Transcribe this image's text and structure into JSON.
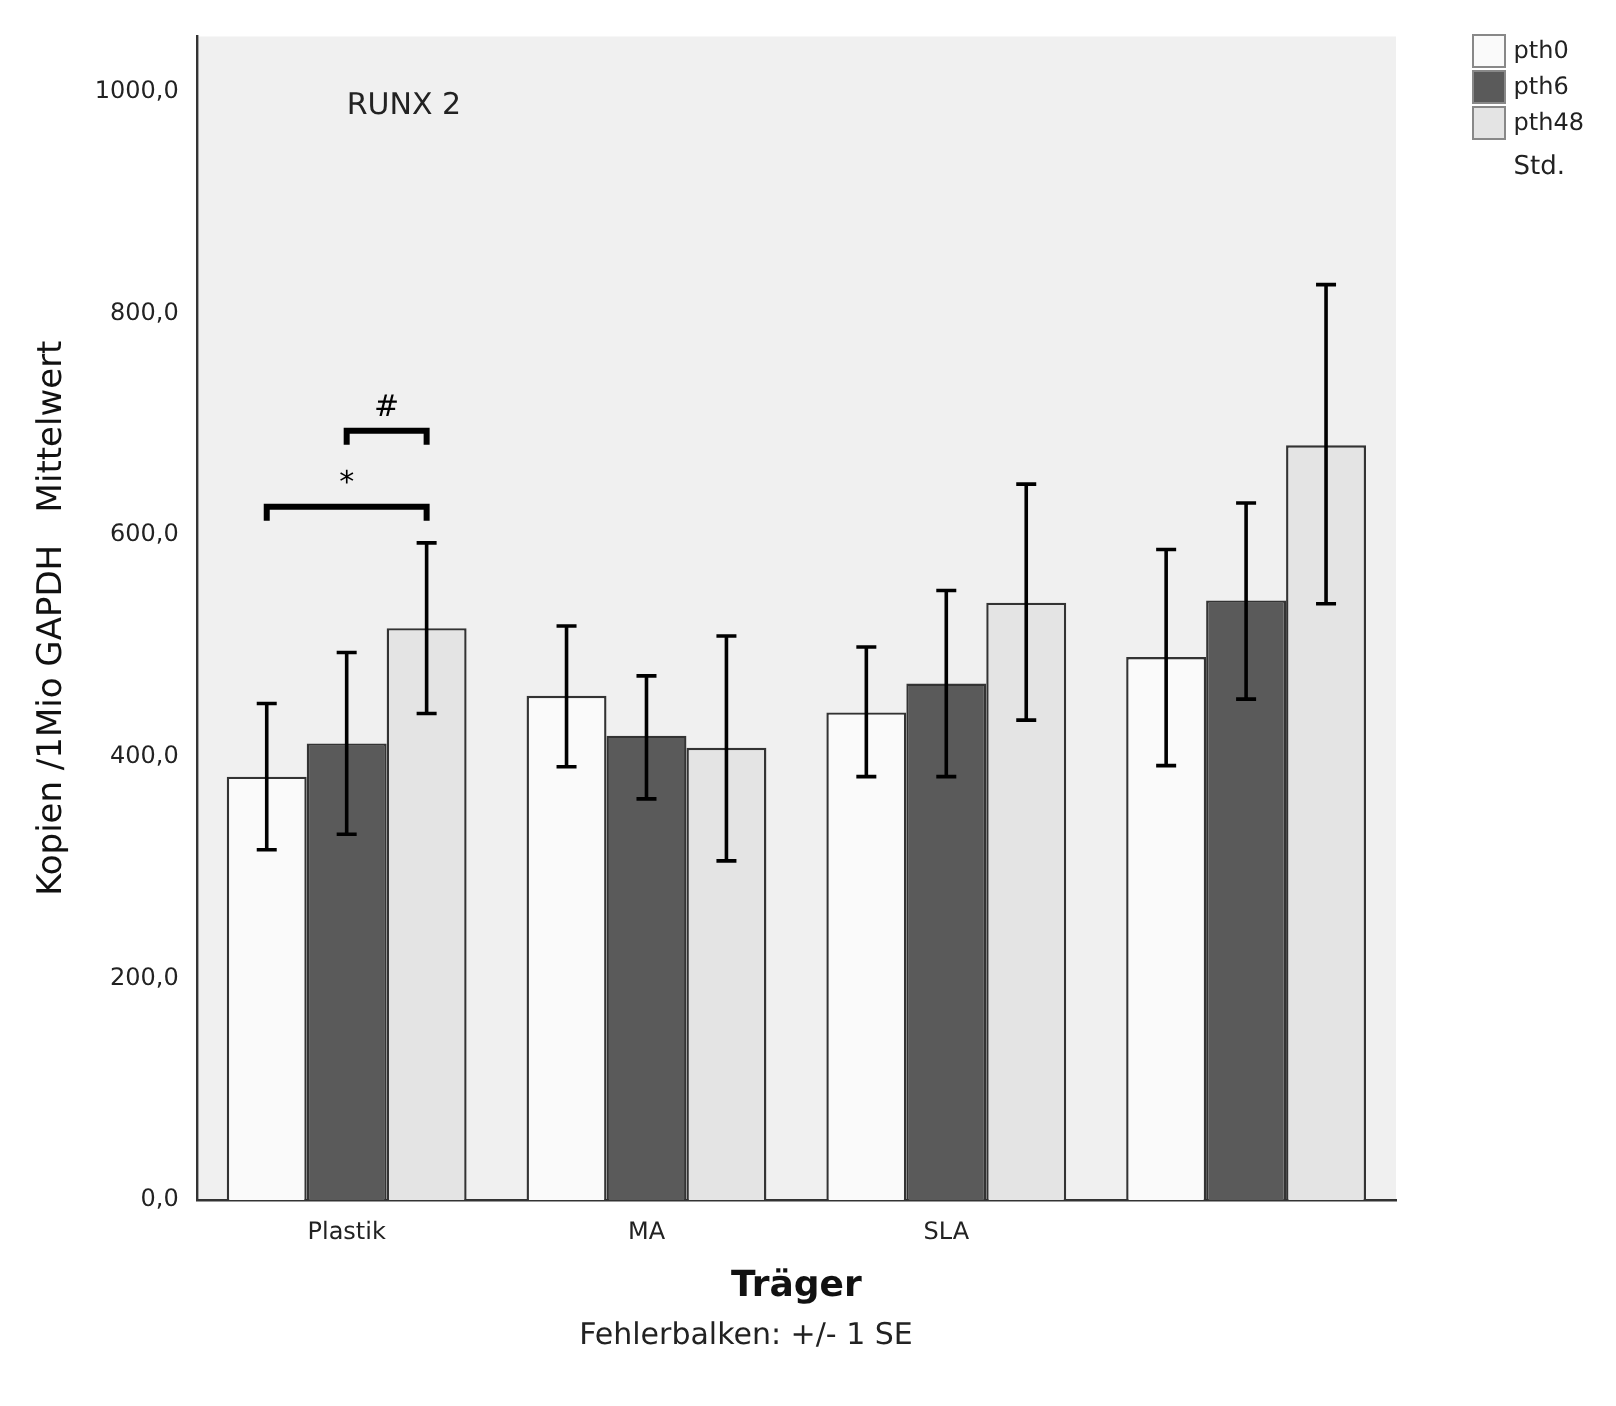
{
  "chart_data": {
    "type": "bar",
    "title": "RUNX 2",
    "xlabel": "Träger",
    "ylabel": "Kopien /1Mio GAPDH   Mittelwert",
    "legend_title": "Std.",
    "categories": [
      "Plastik",
      "MA",
      "SLA",
      null
    ],
    "series": [
      {
        "name": "pth0",
        "color": "#fafafa",
        "values": [
          382,
          455,
          440,
          490
        ],
        "errors": [
          [
            316,
            448
          ],
          [
            391,
            518
          ],
          [
            382,
            499
          ],
          [
            392,
            587
          ]
        ]
      },
      {
        "name": "pth6",
        "color": "#5a5a5a",
        "values": [
          412,
          419,
          466,
          541
        ],
        "errors": [
          [
            330,
            494
          ],
          [
            362,
            473
          ],
          [
            382,
            550
          ],
          [
            452,
            629
          ]
        ]
      },
      {
        "name": "pth48",
        "color": "#e4e4e4",
        "values": [
          516,
          408,
          539,
          681
        ],
        "errors": [
          [
            439,
            593
          ],
          [
            306,
            509
          ],
          [
            433,
            646
          ],
          [
            538,
            826
          ]
        ]
      }
    ],
    "ylim": [
      0,
      1050
    ],
    "yticks": [
      {
        "value": 0,
        "label": "0,0"
      },
      {
        "value": 200,
        "label": "200,0"
      },
      {
        "value": 400,
        "label": "400,0"
      },
      {
        "value": 600,
        "label": "600,0"
      },
      {
        "value": 800,
        "label": "800,0"
      },
      {
        "value": 1000,
        "label": "1000,0"
      }
    ],
    "grid": false,
    "legend": "top right",
    "annotations": [
      "*",
      "#",
      "Fehlerbalken: +/- 1 SE"
    ]
  }
}
